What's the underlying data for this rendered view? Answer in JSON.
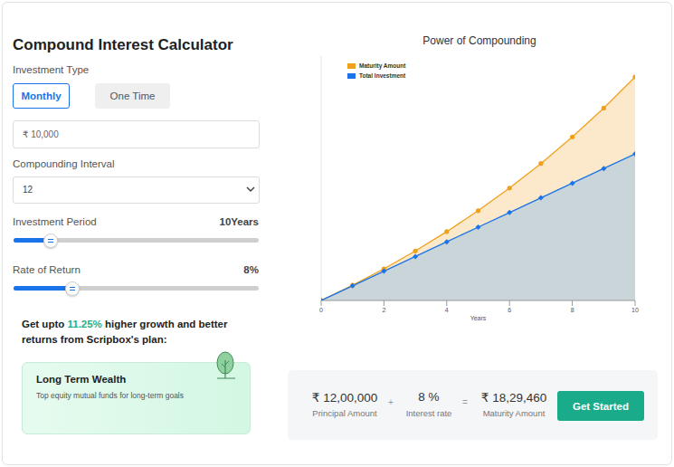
{
  "calculator": {
    "title": "Compound Interest Calculator",
    "investment_type_label": "Investment Type",
    "investment_types": [
      "Monthly",
      "One Time"
    ],
    "selected_type": "Monthly",
    "amount": "₹ 10,000",
    "compounding_label": "Compounding Interval",
    "compounding": "12",
    "period_label": "Investment Period",
    "period": {
      "value": 10,
      "unit": "Years",
      "range": [
        1,
        60
      ]
    },
    "rate_label": "Rate of Return",
    "rate": {
      "value": 8,
      "unit": "%",
      "range": [
        1,
        30
      ]
    },
    "promo": {
      "before": "Get upto ",
      "highlight": "11.25%",
      "after": " higher growth and better returns from Scripbox's plan:"
    },
    "card": {
      "title": "Long Term Wealth",
      "subtitle": "Top equity mutual funds for long-term goals"
    }
  },
  "summary": {
    "items": [
      {
        "value": "₹ 12,00,000",
        "label": "Principal Amount"
      },
      {
        "value": "8 %",
        "label": "Interest rate"
      },
      {
        "value": "₹ 18,29,460",
        "label": "Maturity Amount"
      }
    ],
    "operators": [
      "+",
      "="
    ],
    "button": "Get Started"
  },
  "chart_data": {
    "type": "area",
    "title": "Power of Compounding",
    "x": [
      0,
      1,
      2,
      3,
      4,
      5,
      6,
      7,
      8,
      9,
      10
    ],
    "x_label": "Years",
    "xlim": [
      0,
      10
    ],
    "xticks": [
      0,
      2,
      4,
      6,
      8,
      10
    ],
    "ylim": [
      0,
      2000000
    ],
    "tick_labels": "x",
    "grid": false,
    "legend": "top-left",
    "series": [
      {
        "name": "Maturity Amount",
        "color": "#f0a11c",
        "marker": "circle",
        "values": [
          0,
          124499,
          259332,
          405356,
          563499,
          734768,
          920253,
          1121134,
          1338688,
          1574297,
          1829460
        ]
      },
      {
        "name": "Total Investment",
        "color": "#1a73e8",
        "marker": "diamond",
        "values": [
          0,
          120000,
          240000,
          360000,
          480000,
          600000,
          720000,
          840000,
          960000,
          1080000,
          1200000
        ]
      }
    ]
  }
}
